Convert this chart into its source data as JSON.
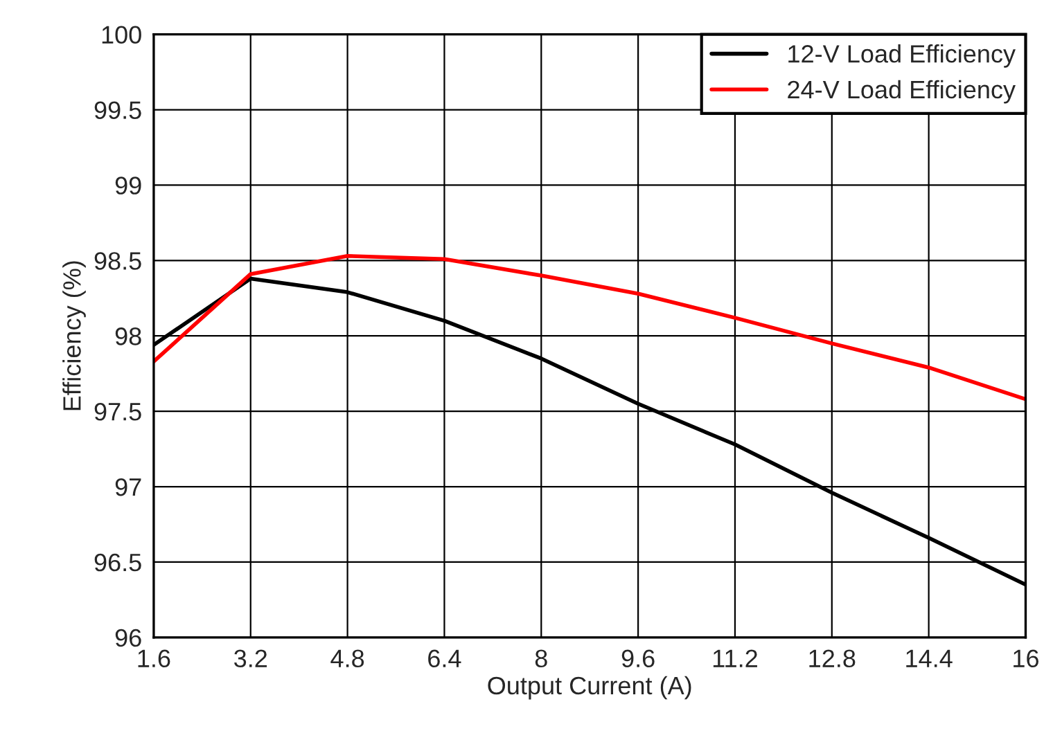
{
  "chart_data": {
    "type": "line",
    "xlabel": "Output Current (A)",
    "ylabel": "Efficiency (%)",
    "x": [
      1.6,
      3.2,
      4.8,
      6.4,
      8,
      9.6,
      11.2,
      12.8,
      14.4,
      16
    ],
    "series": [
      {
        "name": "12-V Load Efficiency",
        "color": "#000000",
        "values": [
          97.94,
          98.38,
          98.29,
          98.1,
          97.85,
          97.55,
          97.28,
          96.96,
          96.66,
          96.35
        ]
      },
      {
        "name": "24-V Load Efficiency",
        "color": "#ff0000",
        "values": [
          97.83,
          98.41,
          98.53,
          98.51,
          98.4,
          98.28,
          98.12,
          97.95,
          97.79,
          97.58
        ]
      }
    ],
    "xlim": [
      1.6,
      16
    ],
    "xticks": [
      1.6,
      3.2,
      4.8,
      6.4,
      8,
      9.6,
      11.2,
      12.8,
      14.4,
      16
    ],
    "ylim": [
      96,
      100
    ],
    "yticks": [
      96,
      96.5,
      97,
      97.5,
      98,
      98.5,
      99,
      99.5,
      100
    ],
    "grid": true,
    "legend": "top right",
    "marker": "none",
    "line_style": "solid"
  }
}
